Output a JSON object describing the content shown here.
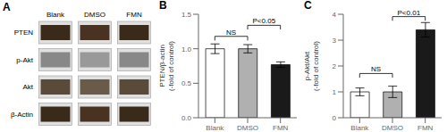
{
  "chart_data": [
    {
      "type": "blot",
      "title": "A",
      "categories": [
        "Blank",
        "DMSO",
        "FMN"
      ],
      "series": [
        {
          "name": "PTEN",
          "colors": [
            "#3a2a1a",
            "#4a3222",
            "#3a2a1a"
          ]
        },
        {
          "name": "p-Akt",
          "colors": [
            "#888888",
            "#999999",
            "#888888"
          ]
        },
        {
          "name": "Akt",
          "colors": [
            "#5a4a3a",
            "#6a5a4a",
            "#5a4a3a"
          ]
        },
        {
          "name": "β-Actin",
          "colors": [
            "#3a2a1a",
            "#4a3222",
            "#3a2a1a"
          ]
        }
      ]
    },
    {
      "type": "bar",
      "title": "B",
      "categories": [
        "Blank",
        "DMSO",
        "FMN"
      ],
      "values": [
        1.0,
        1.0,
        0.77
      ],
      "errors": [
        0.07,
        0.06,
        0.04
      ],
      "colors": [
        "white",
        "#b0b0b0",
        "#1a1a1a"
      ],
      "ylabel": "PTEN/β-actin\n(-fold of control)",
      "ylim": [
        0.0,
        1.5
      ],
      "yticks": [
        {
          "value": 0.0,
          "label": "0.0"
        },
        0.5,
        {
          "value": 1.0,
          "label": "1.0"
        },
        1.5
      ],
      "annotations": [
        {
          "text": "NS",
          "from": "Blank",
          "to": "DMSO",
          "y": 1.12
        },
        {
          "text": "P<0.05",
          "from": "DMSO",
          "to": "FMN",
          "y": 1.28
        }
      ]
    },
    {
      "type": "bar",
      "title": "C",
      "categories": [
        "Blank",
        "DMSO",
        "FMN"
      ],
      "values": [
        1.0,
        1.0,
        3.4
      ],
      "errors": [
        0.15,
        0.22,
        0.28
      ],
      "colors": [
        "white",
        "#b0b0b0",
        "#1a1a1a"
      ],
      "ylabel": "p-Akt/Akt\n(-fold of control)",
      "ylim": [
        0,
        4
      ],
      "yticks": [
        0,
        1,
        2,
        3,
        4
      ],
      "annotations": [
        {
          "text": "NS",
          "from": "Blank",
          "to": "DMSO",
          "y": 1.55
        },
        {
          "text": "P<0.01",
          "from": "DMSO",
          "to": "FMN",
          "y": 3.75
        }
      ]
    }
  ]
}
